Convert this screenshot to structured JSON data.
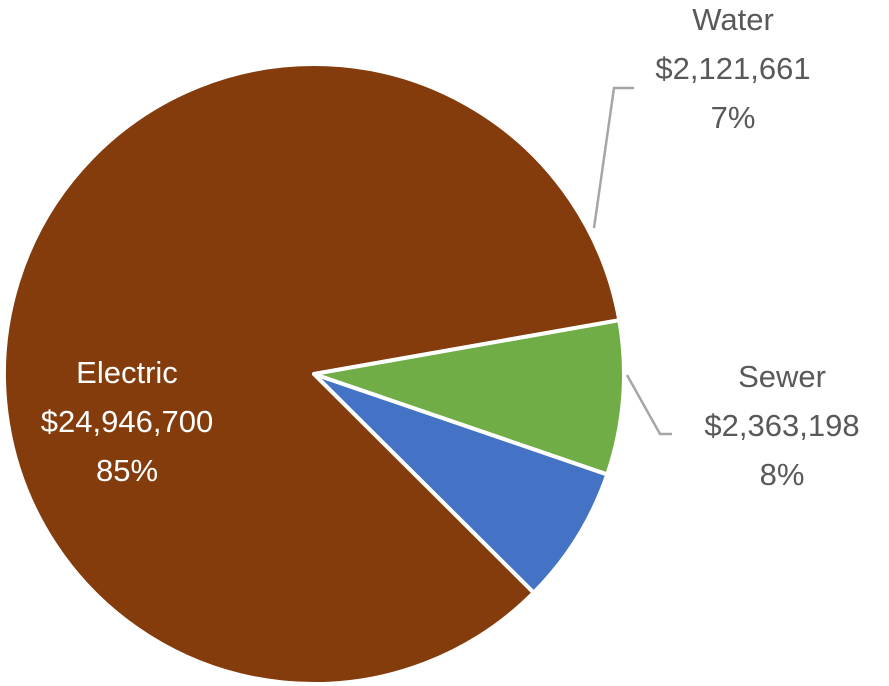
{
  "chart_data": {
    "type": "pie",
    "title": "",
    "slices": [
      {
        "name": "Electric",
        "value": 24946700,
        "value_label": "$24,946,700",
        "percent_label": "85%",
        "color": "#843C0C"
      },
      {
        "name": "Water",
        "value": 2121661,
        "value_label": "$2,121,661",
        "percent_label": "7%",
        "color": "#4472C4"
      },
      {
        "name": "Sewer",
        "value": 2363198,
        "value_label": "$2,363,198",
        "percent_label": "8%",
        "color": "#70AD47"
      }
    ],
    "start_angle_deg": 10,
    "direction": "counterclockwise",
    "legend": "none",
    "slice_border_color": "#FFFFFF",
    "label_color_inside": "#FFFFFF",
    "label_color_outside": "#595959"
  }
}
